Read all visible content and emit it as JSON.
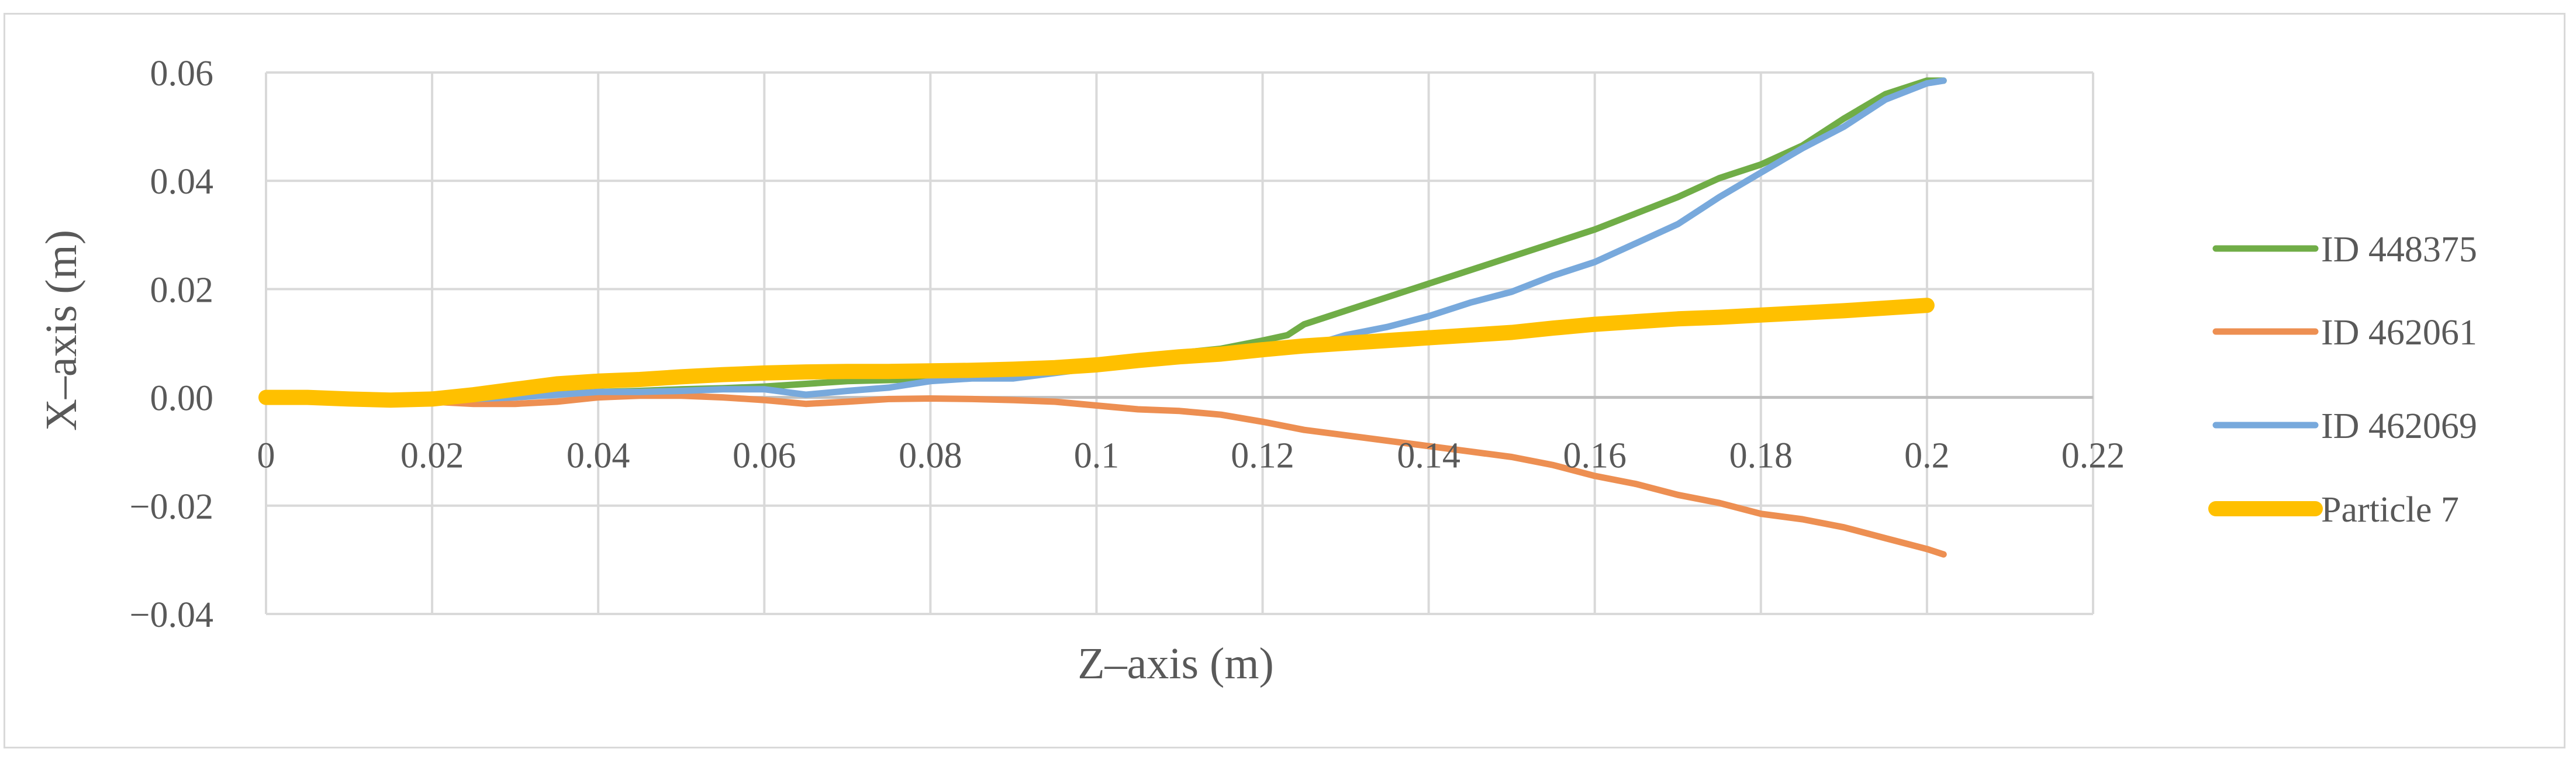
{
  "chart_data": {
    "type": "line",
    "xlabel": "Z–axis (m)",
    "ylabel": "X–axis (m)",
    "xlim": [
      0,
      0.22
    ],
    "ylim": [
      -0.04,
      0.06
    ],
    "x_ticks": [
      0,
      0.02,
      0.04,
      0.06,
      0.08,
      0.1,
      0.12,
      0.14,
      0.16,
      0.18,
      0.2,
      0.22
    ],
    "x_tick_labels": [
      "0",
      "0.02",
      "0.04",
      "0.06",
      "0.08",
      "0.1",
      "0.12",
      "0.14",
      "0.16",
      "0.18",
      "0.2",
      "0.22"
    ],
    "y_ticks": [
      0.06,
      0.04,
      0.02,
      0.0,
      -0.02,
      -0.04
    ],
    "y_tick_labels": [
      "0.06",
      "0.04",
      "0.02",
      "0.00",
      "−0.02",
      "−0.04"
    ],
    "grid": true,
    "legend_position": "right",
    "series": [
      {
        "name": "ID 448375",
        "color": "#70ad47",
        "points": [
          [
            0,
            0
          ],
          [
            0.005,
            0
          ],
          [
            0.01,
            -0.0005
          ],
          [
            0.015,
            -0.0008
          ],
          [
            0.02,
            -0.0005
          ],
          [
            0.025,
            -0.0003
          ],
          [
            0.03,
            0.0002
          ],
          [
            0.035,
            0.0006
          ],
          [
            0.04,
            0.001
          ],
          [
            0.045,
            0.0012
          ],
          [
            0.05,
            0.0015
          ],
          [
            0.055,
            0.0017
          ],
          [
            0.06,
            0.002
          ],
          [
            0.065,
            0.0025
          ],
          [
            0.07,
            0.003
          ],
          [
            0.075,
            0.0032
          ],
          [
            0.08,
            0.0035
          ],
          [
            0.085,
            0.004
          ],
          [
            0.09,
            0.0045
          ],
          [
            0.095,
            0.0055
          ],
          [
            0.1,
            0.0065
          ],
          [
            0.105,
            0.0075
          ],
          [
            0.11,
            0.0082
          ],
          [
            0.115,
            0.009
          ],
          [
            0.12,
            0.0105
          ],
          [
            0.123,
            0.0115
          ],
          [
            0.125,
            0.0135
          ],
          [
            0.13,
            0.016
          ],
          [
            0.135,
            0.0185
          ],
          [
            0.14,
            0.021
          ],
          [
            0.145,
            0.0235
          ],
          [
            0.15,
            0.026
          ],
          [
            0.155,
            0.0285
          ],
          [
            0.16,
            0.031
          ],
          [
            0.165,
            0.034
          ],
          [
            0.17,
            0.037
          ],
          [
            0.175,
            0.0405
          ],
          [
            0.18,
            0.043
          ],
          [
            0.185,
            0.0465
          ],
          [
            0.19,
            0.0515
          ],
          [
            0.195,
            0.056
          ],
          [
            0.2,
            0.0585
          ],
          [
            0.202,
            0.0585
          ]
        ]
      },
      {
        "name": "ID 462061",
        "color": "#ed8f52",
        "points": [
          [
            0,
            0
          ],
          [
            0.005,
            0
          ],
          [
            0.01,
            -0.0005
          ],
          [
            0.015,
            -0.0008
          ],
          [
            0.02,
            -0.0008
          ],
          [
            0.025,
            -0.0012
          ],
          [
            0.03,
            -0.0012
          ],
          [
            0.035,
            -0.0008
          ],
          [
            0.04,
            0
          ],
          [
            0.045,
            0.0003
          ],
          [
            0.05,
            0.0003
          ],
          [
            0.055,
            0
          ],
          [
            0.06,
            -0.0005
          ],
          [
            0.065,
            -0.0012
          ],
          [
            0.07,
            -0.0008
          ],
          [
            0.075,
            -0.0003
          ],
          [
            0.08,
            -0.0002
          ],
          [
            0.085,
            -0.0003
          ],
          [
            0.09,
            -0.0005
          ],
          [
            0.095,
            -0.0008
          ],
          [
            0.1,
            -0.0015
          ],
          [
            0.105,
            -0.0022
          ],
          [
            0.11,
            -0.0025
          ],
          [
            0.115,
            -0.0032
          ],
          [
            0.12,
            -0.0045
          ],
          [
            0.125,
            -0.006
          ],
          [
            0.13,
            -0.007
          ],
          [
            0.135,
            -0.008
          ],
          [
            0.14,
            -0.009
          ],
          [
            0.145,
            -0.01
          ],
          [
            0.15,
            -0.011
          ],
          [
            0.155,
            -0.0125
          ],
          [
            0.16,
            -0.0145
          ],
          [
            0.165,
            -0.016
          ],
          [
            0.17,
            -0.018
          ],
          [
            0.175,
            -0.0195
          ],
          [
            0.18,
            -0.0215
          ],
          [
            0.185,
            -0.0225
          ],
          [
            0.19,
            -0.024
          ],
          [
            0.195,
            -0.026
          ],
          [
            0.2,
            -0.028
          ],
          [
            0.202,
            -0.029
          ]
        ]
      },
      {
        "name": "ID 462069",
        "color": "#78a9dc",
        "points": [
          [
            0,
            0
          ],
          [
            0.005,
            0
          ],
          [
            0.01,
            -0.0005
          ],
          [
            0.015,
            -0.0008
          ],
          [
            0.02,
            -0.0005
          ],
          [
            0.025,
            -0.0003
          ],
          [
            0.03,
            0
          ],
          [
            0.035,
            0.0005
          ],
          [
            0.04,
            0.001
          ],
          [
            0.045,
            0.001
          ],
          [
            0.05,
            0.0012
          ],
          [
            0.055,
            0.0015
          ],
          [
            0.06,
            0.0015
          ],
          [
            0.065,
            0.0005
          ],
          [
            0.07,
            0.0012
          ],
          [
            0.075,
            0.0018
          ],
          [
            0.08,
            0.003
          ],
          [
            0.085,
            0.0035
          ],
          [
            0.09,
            0.0035
          ],
          [
            0.095,
            0.0045
          ],
          [
            0.1,
            0.0055
          ],
          [
            0.105,
            0.0065
          ],
          [
            0.11,
            0.007
          ],
          [
            0.115,
            0.0075
          ],
          [
            0.12,
            0.0082
          ],
          [
            0.125,
            0.0092
          ],
          [
            0.13,
            0.0115
          ],
          [
            0.135,
            0.013
          ],
          [
            0.14,
            0.015
          ],
          [
            0.145,
            0.0175
          ],
          [
            0.15,
            0.0195
          ],
          [
            0.155,
            0.0225
          ],
          [
            0.16,
            0.025
          ],
          [
            0.165,
            0.0285
          ],
          [
            0.17,
            0.032
          ],
          [
            0.175,
            0.037
          ],
          [
            0.18,
            0.0415
          ],
          [
            0.185,
            0.046
          ],
          [
            0.19,
            0.05
          ],
          [
            0.195,
            0.055
          ],
          [
            0.2,
            0.058
          ],
          [
            0.202,
            0.0585
          ]
        ]
      },
      {
        "name": "Particle 7",
        "color": "#ffc000",
        "points": [
          [
            0,
            0
          ],
          [
            0.005,
            0
          ],
          [
            0.01,
            -0.0003
          ],
          [
            0.015,
            -0.0005
          ],
          [
            0.02,
            -0.0003
          ],
          [
            0.025,
            0.0005
          ],
          [
            0.03,
            0.0015
          ],
          [
            0.035,
            0.0025
          ],
          [
            0.04,
            0.003
          ],
          [
            0.045,
            0.0033
          ],
          [
            0.05,
            0.0038
          ],
          [
            0.055,
            0.0042
          ],
          [
            0.06,
            0.0045
          ],
          [
            0.065,
            0.0047
          ],
          [
            0.07,
            0.0048
          ],
          [
            0.075,
            0.0048
          ],
          [
            0.08,
            0.0049
          ],
          [
            0.085,
            0.005
          ],
          [
            0.09,
            0.0052
          ],
          [
            0.095,
            0.0055
          ],
          [
            0.1,
            0.006
          ],
          [
            0.105,
            0.0068
          ],
          [
            0.11,
            0.0075
          ],
          [
            0.115,
            0.008
          ],
          [
            0.12,
            0.0088
          ],
          [
            0.125,
            0.0095
          ],
          [
            0.13,
            0.01
          ],
          [
            0.135,
            0.0105
          ],
          [
            0.14,
            0.011
          ],
          [
            0.145,
            0.0115
          ],
          [
            0.15,
            0.012
          ],
          [
            0.155,
            0.0128
          ],
          [
            0.16,
            0.0135
          ],
          [
            0.165,
            0.014
          ],
          [
            0.17,
            0.0145
          ],
          [
            0.175,
            0.0148
          ],
          [
            0.18,
            0.0152
          ],
          [
            0.185,
            0.0156
          ],
          [
            0.19,
            0.016
          ],
          [
            0.195,
            0.0165
          ],
          [
            0.2,
            0.017
          ]
        ]
      }
    ]
  }
}
